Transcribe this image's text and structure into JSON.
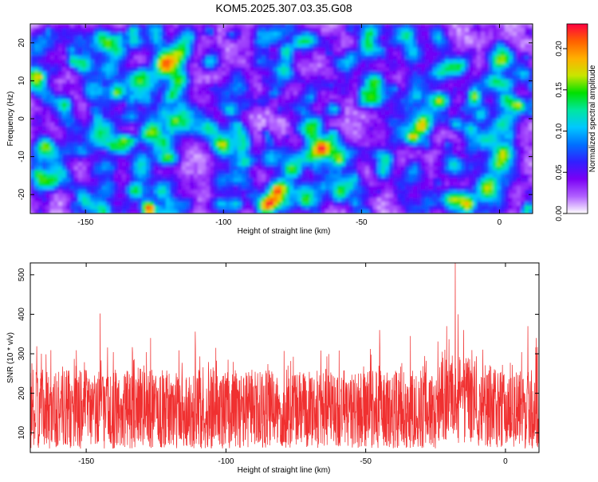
{
  "title": "KOM5.2025.307.03.35.G08",
  "chart_data": [
    {
      "type": "heatmap",
      "xlabel": "Height of straight line (km)",
      "ylabel": "Frequency (Hz)",
      "xlim": [
        -170,
        12
      ],
      "ylim": [
        -25,
        25
      ],
      "xticks": [
        "-150",
        "-100",
        "-50",
        "0"
      ],
      "xtick_values": [
        -150,
        -100,
        -50,
        0
      ],
      "yticks": [
        "-20",
        "-10",
        "0",
        "10",
        "20"
      ],
      "ytick_values": [
        -20,
        -10,
        0,
        10,
        20
      ],
      "colorbar": {
        "label": "Normalized spectral amplitude",
        "range": [
          0,
          0.23
        ],
        "ticks": [
          "0.00",
          "0.05",
          "0.10",
          "0.15",
          "0.20"
        ],
        "tick_values": [
          0,
          0.05,
          0.1,
          0.15,
          0.2
        ],
        "colormap": [
          "#ffffff",
          "#b060ff",
          "#7a00f5",
          "#3020ff",
          "#0070ff",
          "#00c8ff",
          "#00e6a0",
          "#00e000",
          "#c8e600",
          "#ffb000",
          "#ff6000",
          "#ff0040"
        ]
      },
      "peak": {
        "x": -128,
        "y": -23,
        "value": 0.23
      },
      "grid": false
    },
    {
      "type": "line",
      "xlabel": "Height of straight line (km)",
      "ylabel": "SNR (10 * v/v)",
      "xlim": [
        -170,
        12
      ],
      "ylim": [
        50,
        530
      ],
      "xticks": [
        "-150",
        "-100",
        "-50",
        "0"
      ],
      "xtick_values": [
        -150,
        -100,
        -50,
        0
      ],
      "yticks": [
        "100",
        "200",
        "300",
        "400",
        "500"
      ],
      "ytick_values": [
        100,
        200,
        300,
        400,
        500
      ],
      "color": "#f03030",
      "baseline_range": [
        60,
        260
      ],
      "notable_peaks": [
        {
          "x": -166,
          "y": 300
        },
        {
          "x": -145,
          "y": 402
        },
        {
          "x": -127,
          "y": 340
        },
        {
          "x": -111,
          "y": 356
        },
        {
          "x": -45,
          "y": 360
        },
        {
          "x": -34,
          "y": 345
        },
        {
          "x": -21,
          "y": 370
        },
        {
          "x": -18,
          "y": 530
        },
        {
          "x": -17,
          "y": 400
        },
        {
          "x": -15,
          "y": 360
        },
        {
          "x": 8,
          "y": 370
        },
        {
          "x": 11,
          "y": 340
        }
      ],
      "grid": false
    }
  ]
}
